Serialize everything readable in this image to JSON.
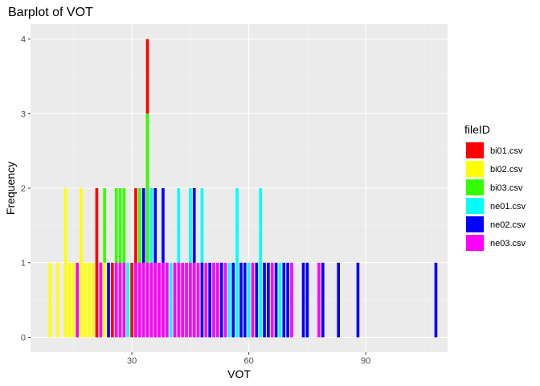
{
  "chart_data": {
    "type": "bar",
    "title": "Barplot of VOT",
    "xlabel": "VOT",
    "ylabel": "Frequency",
    "xlim": [
      4,
      111
    ],
    "ylim": [
      -0.2,
      4.2
    ],
    "x_ticks": [
      30,
      60,
      90
    ],
    "y_ticks": [
      0,
      1,
      2,
      3,
      4
    ],
    "grid": true,
    "legend_title": "fileID",
    "legend_position": "right",
    "bar_width": 1,
    "series": [
      {
        "name": "bi01.csv",
        "color": "#FF0000",
        "bars": [
          {
            "x": 21,
            "y": 2
          },
          {
            "x": 31,
            "y": 2
          },
          {
            "x": 34,
            "y": 4
          },
          {
            "x": 22,
            "y": 1
          },
          {
            "x": 25,
            "y": 1
          },
          {
            "x": 30,
            "y": 1
          },
          {
            "x": 37,
            "y": 1
          },
          {
            "x": 39,
            "y": 1
          }
        ]
      },
      {
        "name": "bi02.csv",
        "color": "#FFFF00",
        "bars": [
          {
            "x": 9,
            "y": 1
          },
          {
            "x": 11,
            "y": 1
          },
          {
            "x": 13,
            "y": 2
          },
          {
            "x": 14,
            "y": 1
          },
          {
            "x": 15,
            "y": 1
          },
          {
            "x": 16,
            "y": 1
          },
          {
            "x": 17,
            "y": 2
          },
          {
            "x": 18,
            "y": 1
          },
          {
            "x": 19,
            "y": 1
          },
          {
            "x": 20,
            "y": 1
          },
          {
            "x": 24,
            "y": 1
          }
        ]
      },
      {
        "name": "bi03.csv",
        "color": "#33FF00",
        "bars": [
          {
            "x": 23,
            "y": 2
          },
          {
            "x": 26,
            "y": 2
          },
          {
            "x": 27,
            "y": 2
          },
          {
            "x": 28,
            "y": 2
          },
          {
            "x": 32,
            "y": 2
          },
          {
            "x": 34,
            "y": 3
          },
          {
            "x": 29,
            "y": 1
          }
        ]
      },
      {
        "name": "ne01.csv",
        "color": "#00FFFF",
        "bars": [
          {
            "x": 35,
            "y": 2
          },
          {
            "x": 42,
            "y": 2
          },
          {
            "x": 45,
            "y": 2
          },
          {
            "x": 48,
            "y": 2
          },
          {
            "x": 57,
            "y": 2
          },
          {
            "x": 63,
            "y": 2
          },
          {
            "x": 40,
            "y": 1
          },
          {
            "x": 55,
            "y": 1
          },
          {
            "x": 60,
            "y": 1
          },
          {
            "x": 68,
            "y": 1
          }
        ]
      },
      {
        "name": "ne02.csv",
        "color": "#0000FF",
        "bars": [
          {
            "x": 33,
            "y": 2
          },
          {
            "x": 36,
            "y": 2
          },
          {
            "x": 38,
            "y": 2
          },
          {
            "x": 46,
            "y": 2
          },
          {
            "x": 50,
            "y": 1
          },
          {
            "x": 53,
            "y": 1
          },
          {
            "x": 56,
            "y": 1
          },
          {
            "x": 58,
            "y": 1
          },
          {
            "x": 59,
            "y": 1
          },
          {
            "x": 62,
            "y": 1
          },
          {
            "x": 64,
            "y": 1
          },
          {
            "x": 65,
            "y": 1
          },
          {
            "x": 67,
            "y": 1
          },
          {
            "x": 69,
            "y": 1
          },
          {
            "x": 70,
            "y": 1
          },
          {
            "x": 74,
            "y": 1
          },
          {
            "x": 75,
            "y": 1
          },
          {
            "x": 79,
            "y": 1
          },
          {
            "x": 83,
            "y": 1
          },
          {
            "x": 88,
            "y": 1
          },
          {
            "x": 108,
            "y": 1
          }
        ]
      },
      {
        "name": "ne03.csv",
        "color": "#FF00FF",
        "bars": [
          {
            "x": 41,
            "y": 1
          },
          {
            "x": 43,
            "y": 1
          },
          {
            "x": 44,
            "y": 1
          },
          {
            "x": 47,
            "y": 1
          },
          {
            "x": 49,
            "y": 1
          },
          {
            "x": 51,
            "y": 1
          },
          {
            "x": 52,
            "y": 1
          },
          {
            "x": 54,
            "y": 1
          },
          {
            "x": 61,
            "y": 1
          },
          {
            "x": 66,
            "y": 1
          },
          {
            "x": 71,
            "y": 1
          },
          {
            "x": 78,
            "y": 1
          }
        ]
      }
    ],
    "overlay_bars": [
      {
        "x": 16,
        "y": 1,
        "color": "#FF00FF"
      },
      {
        "x": 22,
        "y": 1,
        "color": "#FF00FF"
      },
      {
        "x": 24,
        "y": 1,
        "color": "#0000FF"
      },
      {
        "x": 27,
        "y": 1,
        "color": "#FF00FF"
      },
      {
        "x": 28,
        "y": 1,
        "color": "#FF00FF"
      },
      {
        "x": 29,
        "y": 1,
        "color": "#00FFFF"
      },
      {
        "x": 31,
        "y": 1,
        "color": "#FF00FF"
      },
      {
        "x": 32,
        "y": 1,
        "color": "#FF00FF"
      },
      {
        "x": 33,
        "y": 1,
        "color": "#FF00FF"
      },
      {
        "x": 34,
        "y": 1,
        "color": "#FF00FF"
      },
      {
        "x": 35,
        "y": 1,
        "color": "#FF00FF"
      },
      {
        "x": 36,
        "y": 1,
        "color": "#FF00FF"
      },
      {
        "x": 37,
        "y": 1,
        "color": "#FF00FF"
      },
      {
        "x": 38,
        "y": 1,
        "color": "#FF00FF"
      },
      {
        "x": 39,
        "y": 1,
        "color": "#FF00FF"
      },
      {
        "x": 42,
        "y": 1,
        "color": "#FF00FF"
      },
      {
        "x": 45,
        "y": 1,
        "color": "#FF00FF"
      },
      {
        "x": 46,
        "y": 1,
        "color": "#FF00FF"
      },
      {
        "x": 48,
        "y": 1,
        "color": "#0000FF"
      },
      {
        "x": 26,
        "y": 1,
        "color": "#FF00FF"
      },
      {
        "x": 23,
        "y": 1,
        "color": "#FFFF00"
      }
    ]
  }
}
